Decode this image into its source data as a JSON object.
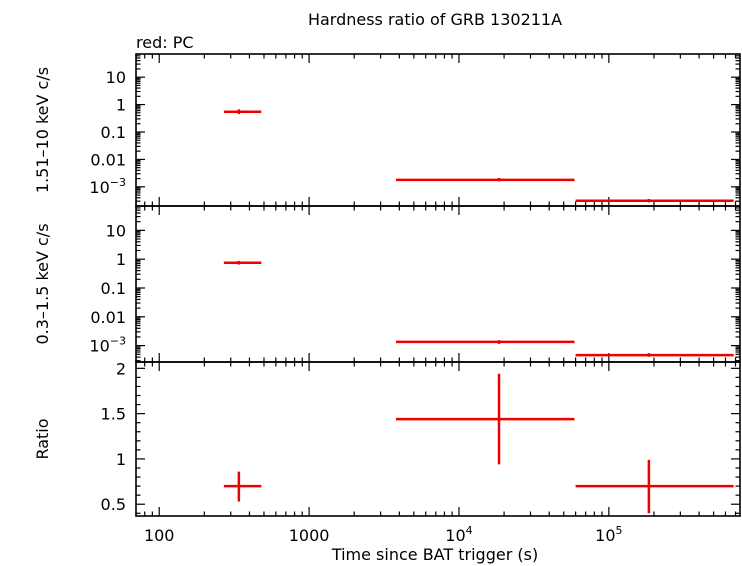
{
  "chart_data": {
    "type": "scatter",
    "title": "Hardness ratio of GRB 130211A",
    "subtitle": "red: PC",
    "xlabel": "Time since BAT trigger (s)",
    "x_scale": "log",
    "xlim": [
      70,
      750000
    ],
    "x_ticks": [
      {
        "value": 100,
        "label": "100",
        "sup": ""
      },
      {
        "value": 1000,
        "label": "1000",
        "sup": ""
      },
      {
        "value": 10000,
        "label": "10",
        "sup": "4"
      },
      {
        "value": 100000,
        "label": "10",
        "sup": "5"
      }
    ],
    "series_color": "#ee0000",
    "grid": false,
    "panels": [
      {
        "id": "hard",
        "ylabel": "1.51–10 keV c/s",
        "y_scale": "log",
        "ylim": [
          0.0002,
          70
        ],
        "y_ticks": [
          {
            "value": 10,
            "label": "10",
            "sup": ""
          },
          {
            "value": 1,
            "label": "1",
            "sup": ""
          },
          {
            "value": 0.1,
            "label": "0.1",
            "sup": ""
          },
          {
            "value": 0.01,
            "label": "0.01",
            "sup": ""
          },
          {
            "value": 0.001,
            "label": "10",
            "sup": "−3"
          }
        ],
        "points": [
          {
            "x": 340,
            "xlo": 270,
            "xhi": 480,
            "y": 0.55,
            "ylo": 0.45,
            "yhi": 0.67
          },
          {
            "x": 18500,
            "xlo": 3800,
            "xhi": 59000,
            "y": 0.0018,
            "ylo": 0.0016,
            "yhi": 0.0021
          },
          {
            "x": 185000,
            "xlo": 60000,
            "xhi": 680000,
            "y": 0.00031,
            "ylo": 0.00027,
            "yhi": 0.00036
          }
        ]
      },
      {
        "id": "soft",
        "ylabel": "0.3–1.5 keV c/s",
        "y_scale": "log",
        "ylim": [
          0.00027,
          70
        ],
        "y_ticks": [
          {
            "value": 10,
            "label": "10",
            "sup": ""
          },
          {
            "value": 1,
            "label": "1",
            "sup": ""
          },
          {
            "value": 0.1,
            "label": "0.1",
            "sup": ""
          },
          {
            "value": 0.01,
            "label": "0.01",
            "sup": ""
          },
          {
            "value": 0.001,
            "label": "10",
            "sup": "−3"
          }
        ],
        "points": [
          {
            "x": 340,
            "xlo": 270,
            "xhi": 480,
            "y": 0.75,
            "ylo": 0.65,
            "yhi": 0.87
          },
          {
            "x": 18500,
            "xlo": 3800,
            "xhi": 59000,
            "y": 0.00135,
            "ylo": 0.00115,
            "yhi": 0.00155
          },
          {
            "x": 185000,
            "xlo": 60000,
            "xhi": 680000,
            "y": 0.00047,
            "ylo": 0.00041,
            "yhi": 0.00055
          }
        ]
      },
      {
        "id": "ratio",
        "ylabel": "Ratio",
        "y_scale": "linear",
        "ylim": [
          0.37,
          2.07
        ],
        "y_ticks": [
          {
            "value": 2,
            "label": "2",
            "sup": ""
          },
          {
            "value": 1.5,
            "label": "1.5",
            "sup": ""
          },
          {
            "value": 1,
            "label": "1",
            "sup": ""
          },
          {
            "value": 0.5,
            "label": "0.5",
            "sup": ""
          }
        ],
        "points": [
          {
            "x": 340,
            "xlo": 270,
            "xhi": 480,
            "y": 0.7,
            "ylo": 0.53,
            "yhi": 0.86
          },
          {
            "x": 18500,
            "xlo": 3800,
            "xhi": 59000,
            "y": 1.44,
            "ylo": 0.94,
            "yhi": 1.94
          },
          {
            "x": 185000,
            "xlo": 60000,
            "xhi": 680000,
            "y": 0.7,
            "ylo": 0.4,
            "yhi": 0.99
          }
        ]
      }
    ]
  }
}
